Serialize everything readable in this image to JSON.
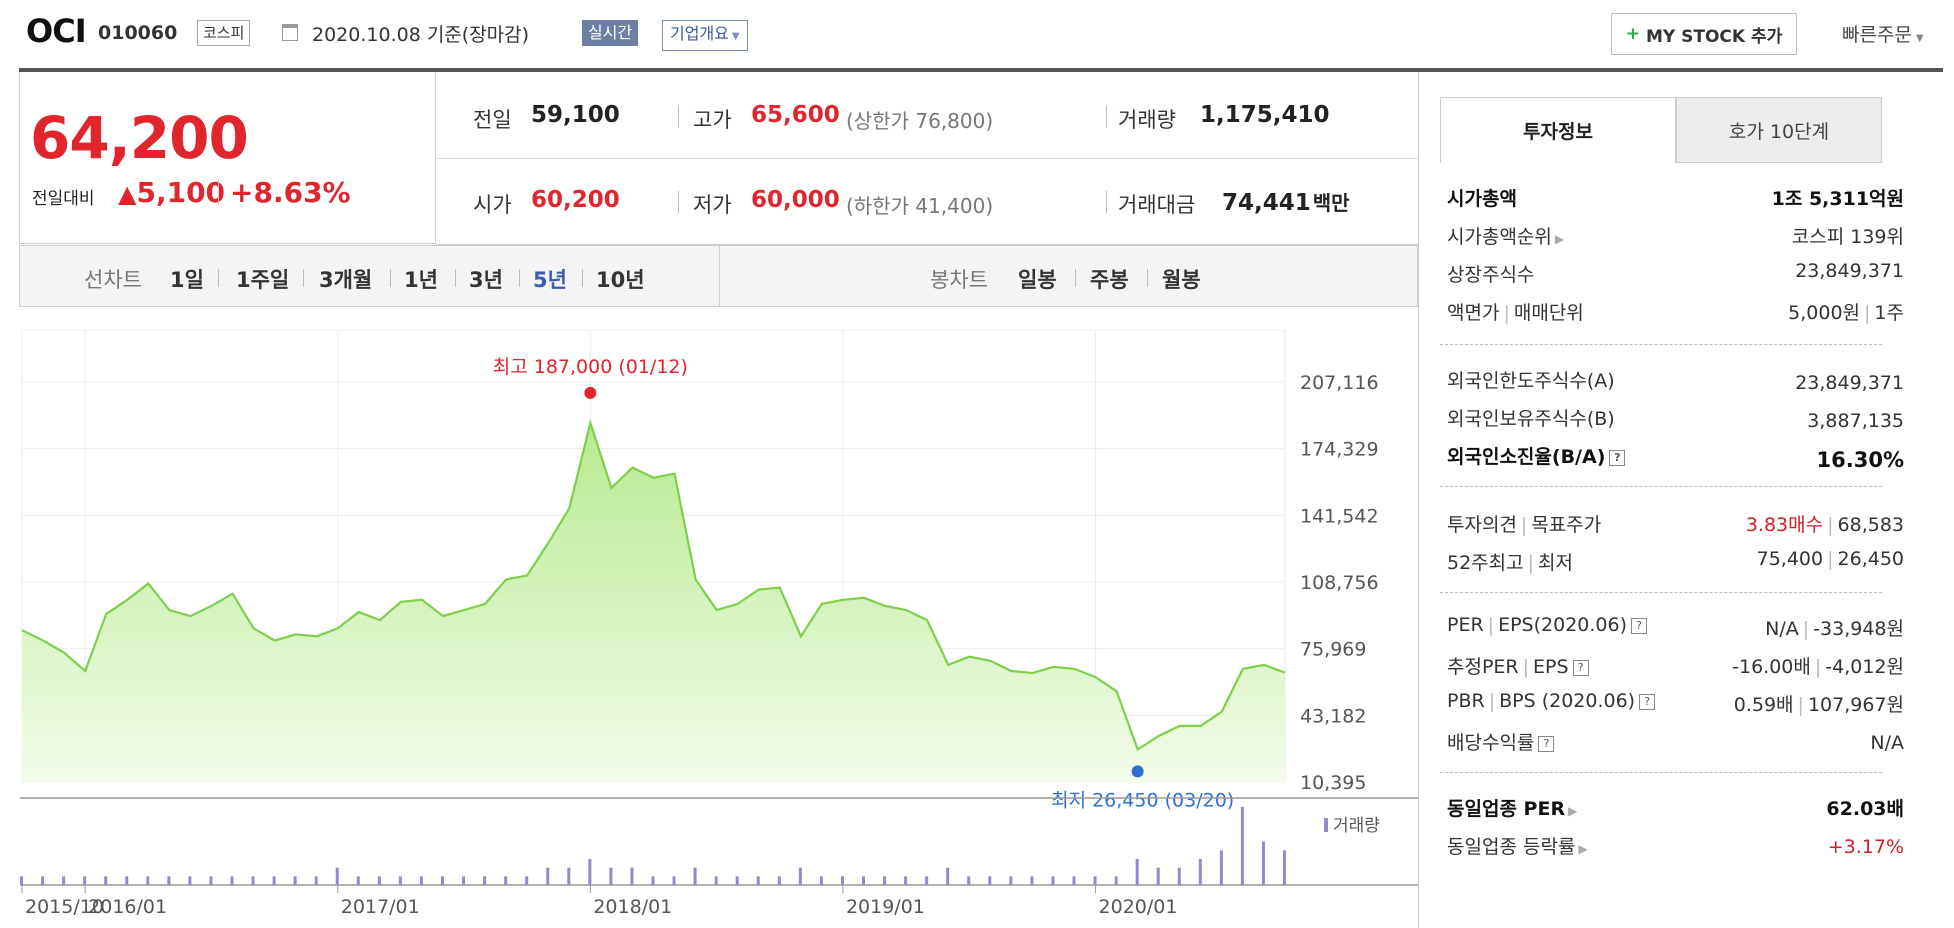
{
  "header": {
    "name": "OCI",
    "code": "010060",
    "market": "코스피",
    "date": "2020.10.08 기준(장마감)",
    "realtime_label": "실시간",
    "overview_label": "기업개요",
    "mystock_label": "MY STOCK 추가",
    "quick_order_label": "빠른주문"
  },
  "price": {
    "current": "64,200",
    "change_label": "전일대비",
    "change": "5,100",
    "change_pct": "+8.63%"
  },
  "stats": {
    "prev_close_label": "전일",
    "prev_close": "59,100",
    "high_label": "고가",
    "high": "65,600",
    "upper_limit": "(상한가 76,800)",
    "volume_label": "거래량",
    "volume": "1,175,410",
    "open_label": "시가",
    "open": "60,200",
    "low_label": "저가",
    "low": "60,000",
    "lower_limit": "(하한가 41,400)",
    "value_label": "거래대금",
    "value": "74,441",
    "value_unit": "백만"
  },
  "periods": {
    "line_label": "선차트",
    "items": [
      "1일",
      "1주일",
      "3개월",
      "1년",
      "3년",
      "5년",
      "10년"
    ],
    "active": "5년",
    "candle_label": "봉차트",
    "candle_items": [
      "일봉",
      "주봉",
      "월봉"
    ]
  },
  "chart_data": {
    "type": "area",
    "y_ticks": [
      "207,116",
      "174,329",
      "141,542",
      "108,756",
      "75,969",
      "43,182",
      "10,395"
    ],
    "ylim": [
      10395,
      207116
    ],
    "x_ticks": [
      "2015/10",
      "2016/01",
      "2017/01",
      "2018/01",
      "2019/01",
      "2020/01"
    ],
    "high_label": "최고 187,000 (01/12)",
    "low_label": "최저 26,450 (03/20)",
    "volume_label": "거래량",
    "colors": {
      "line": "#7fcf4a",
      "fill_top": "#b8ea90",
      "fill_bottom": "#f3fceb",
      "high": "#e0262c",
      "low": "#2c6fd6",
      "volume": "#9a87c9"
    },
    "x": [
      "2015-10",
      "2015-11",
      "2015-12",
      "2016-01",
      "2016-02",
      "2016-03",
      "2016-04",
      "2016-05",
      "2016-06",
      "2016-07",
      "2016-08",
      "2016-09",
      "2016-10",
      "2016-11",
      "2016-12",
      "2017-01",
      "2017-02",
      "2017-03",
      "2017-04",
      "2017-05",
      "2017-06",
      "2017-07",
      "2017-08",
      "2017-09",
      "2017-10",
      "2017-11",
      "2017-12",
      "2018-01",
      "2018-02",
      "2018-03",
      "2018-04",
      "2018-05",
      "2018-06",
      "2018-07",
      "2018-08",
      "2018-09",
      "2018-10",
      "2018-11",
      "2018-12",
      "2019-01",
      "2019-02",
      "2019-03",
      "2019-04",
      "2019-05",
      "2019-06",
      "2019-07",
      "2019-08",
      "2019-09",
      "2019-10",
      "2019-11",
      "2019-12",
      "2020-01",
      "2020-02",
      "2020-03",
      "2020-04",
      "2020-05",
      "2020-06",
      "2020-07",
      "2020-08",
      "2020-09",
      "2020-10"
    ],
    "values": [
      85000,
      80000,
      74000,
      65000,
      93000,
      100000,
      108000,
      95000,
      92000,
      97000,
      103000,
      86000,
      80000,
      83000,
      82000,
      86000,
      94000,
      90000,
      99000,
      100000,
      92000,
      95000,
      98000,
      110000,
      112000,
      128000,
      145000,
      187000,
      155000,
      165000,
      160000,
      162000,
      110000,
      95000,
      98000,
      105000,
      106000,
      82000,
      98000,
      100000,
      101000,
      97000,
      95000,
      90000,
      68000,
      72000,
      70000,
      65000,
      64000,
      67000,
      66000,
      62000,
      55000,
      26450,
      33000,
      38000,
      38000,
      45000,
      66000,
      68000,
      64200
    ],
    "volume": [
      1,
      1,
      1,
      1,
      1,
      1,
      1,
      1,
      1,
      1,
      1,
      1,
      1,
      1,
      1,
      2,
      1,
      1,
      1,
      1,
      1,
      1,
      1,
      1,
      1,
      2,
      2,
      3,
      2,
      2,
      1,
      1,
      2,
      1,
      1,
      1,
      1,
      2,
      1,
      1,
      1,
      1,
      1,
      1,
      2,
      1,
      1,
      1,
      1,
      1,
      1,
      1,
      1,
      3,
      2,
      2,
      3,
      4,
      9,
      5,
      4
    ]
  },
  "panel": {
    "tab_invest": "투자정보",
    "tab_hoga": "호가 10단계",
    "rows1": [
      {
        "label": "시가총액",
        "value": "1조 5,311억원"
      },
      {
        "label": "시가총액순위",
        "value": "코스피 139위"
      },
      {
        "label": "상장주식수",
        "value": "23,849,371"
      },
      {
        "label_a": "액면가",
        "label_b": "매매단위",
        "value_a": "5,000원",
        "value_b": "1주"
      }
    ],
    "rows2": [
      {
        "label": "외국인한도주식수(A)",
        "value": "23,849,371"
      },
      {
        "label": "외국인보유주식수(B)",
        "value": "3,887,135"
      },
      {
        "label": "외국인소진율(B/A)",
        "value": "16.30%"
      }
    ],
    "rows3": {
      "opinion_label_a": "투자의견",
      "opinion_label_b": "목표주가",
      "opinion_value": "3.83매수",
      "target_value": "68,583",
      "w52_label_a": "52주최고",
      "w52_label_b": "최저",
      "w52_high": "75,400",
      "w52_low": "26,450"
    },
    "rows4": {
      "per_a": "PER",
      "per_b": "EPS(2020.06)",
      "per_v": "N/A",
      "eps_v": "-33,948원",
      "eper_a": "추정PER",
      "eper_b": "EPS",
      "eper_v": "-16.00배",
      "eeps_v": "-4,012원",
      "pbr_a": "PBR",
      "pbr_b": "BPS (2020.06)",
      "pbr_v": "0.59배",
      "bps_v": "107,967원",
      "div_label": "배당수익률",
      "div_v": "N/A"
    },
    "rows5": {
      "sector_per_label": "동일업종 PER",
      "sector_per": "62.03배",
      "sector_chg_label": "동일업종 등락률",
      "sector_chg": "+3.17%"
    }
  }
}
